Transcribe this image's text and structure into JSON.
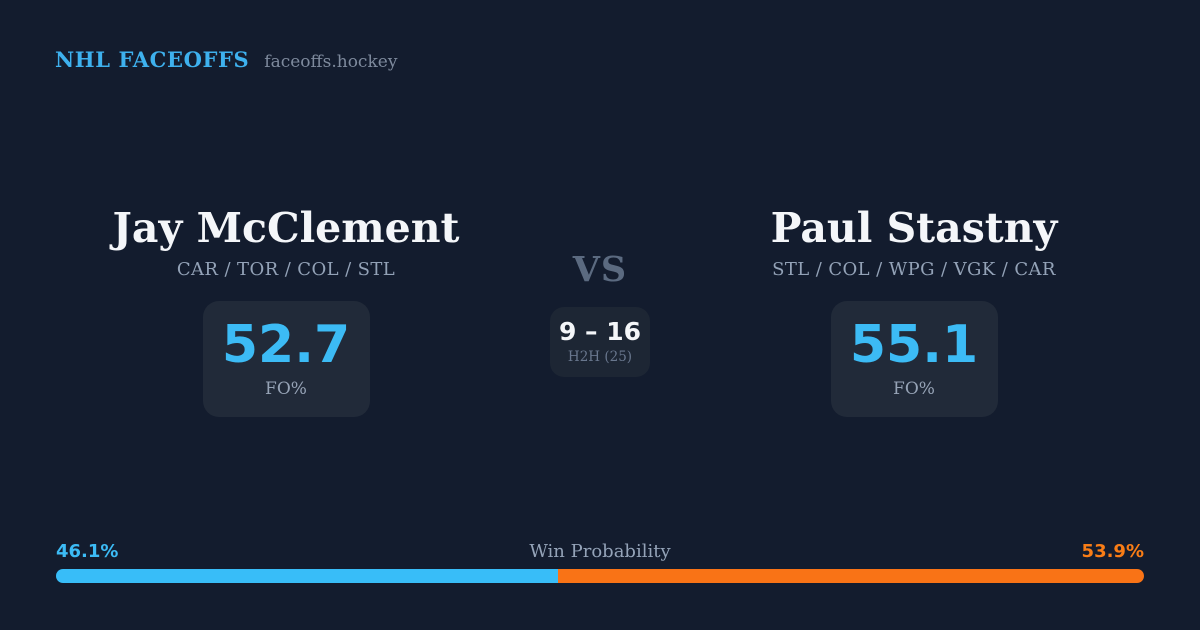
{
  "brand": {
    "title": "NHL FACEOFFS",
    "domain": "faceoffs.hockey"
  },
  "matchup": {
    "vs_label": "VS",
    "h2h": {
      "record": "9 – 16",
      "label": "H2H (25)"
    },
    "players": [
      {
        "name": "Jay McClement",
        "teams": "CAR / TOR / COL / STL",
        "stat_value": "52.7",
        "stat_label": "FO%"
      },
      {
        "name": "Paul Stastny",
        "teams": "STL / COL / WPG / VGK / CAR",
        "stat_value": "55.1",
        "stat_label": "FO%"
      }
    ]
  },
  "win_probability": {
    "title": "Win Probability",
    "left_label": "46.1%",
    "right_label": "53.9%",
    "left_value": 46.1,
    "right_value": 53.9
  },
  "colors": {
    "background": "#131c2e",
    "card_background": "#212a39",
    "h2h_background": "#1d2634",
    "accent_blue": "#38bdf8",
    "accent_orange": "#f97316",
    "text_primary": "#f4f6f9",
    "text_muted": "#93a2b7",
    "vs_gray": "#5b6a80"
  }
}
